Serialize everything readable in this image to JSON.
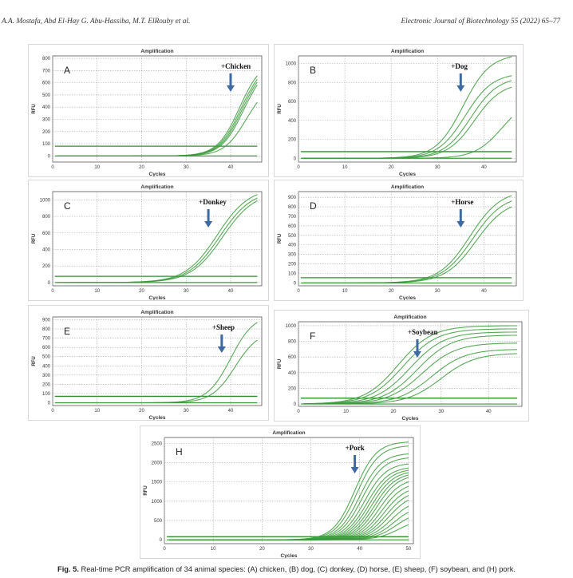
{
  "header": {
    "authors": "A.A. Mostafa, Abd El-Hay G. Abu-Hassiba, M.T. ElRouby et al.",
    "journal": "Electronic Journal of Biotechnology 55 (2022) 65–77"
  },
  "caption": {
    "label": "Fig. 5.",
    "text": "Real-time PCR amplification of 34 animal species: (A) chicken, (B) dog, (C) donkey, (D) horse, (E) sheep, (F) soybean, and (H) pork."
  },
  "colors": {
    "curve": "#3a9a3a",
    "threshold": "#2f8f2f",
    "arrow": "#3d6aa3"
  },
  "chart_data": [
    {
      "id": "A",
      "type": "line",
      "title": "Amplification",
      "xlabel": "Cycles",
      "ylabel": "RFU",
      "panel_letter": "A",
      "annotation": "+Chicken",
      "arrow_cycle": 40,
      "xlim": [
        0,
        47
      ],
      "ylim": [
        -50,
        820
      ],
      "xticks": [
        0,
        10,
        20,
        30,
        40
      ],
      "yticks": [
        0,
        100,
        200,
        300,
        400,
        500,
        600,
        700,
        800
      ],
      "threshold": 80,
      "series": [
        {
          "plateau": 790,
          "midpoint": 42.0,
          "slope": 0.4
        },
        {
          "plateau": 770,
          "midpoint": 42.3,
          "slope": 0.4
        },
        {
          "plateau": 760,
          "midpoint": 42.6,
          "slope": 0.4
        },
        {
          "plateau": 750,
          "midpoint": 42.9,
          "slope": 0.4
        },
        {
          "plateau": 600,
          "midpoint": 43.5,
          "slope": 0.4
        }
      ]
    },
    {
      "id": "B",
      "type": "line",
      "title": "Amplification",
      "xlabel": "Cycles",
      "ylabel": "RFU",
      "panel_letter": "B",
      "annotation": "+Dog",
      "arrow_cycle": 35,
      "xlim": [
        0,
        47
      ],
      "ylim": [
        -40,
        1080
      ],
      "xticks": [
        0,
        10,
        20,
        30,
        40
      ],
      "yticks": [
        0,
        200,
        400,
        600,
        800,
        1000
      ],
      "threshold": 70,
      "series": [
        {
          "plateau": 1100,
          "midpoint": 35.5,
          "slope": 0.34
        },
        {
          "plateau": 900,
          "midpoint": 36.0,
          "slope": 0.34
        },
        {
          "plateau": 860,
          "midpoint": 37.2,
          "slope": 0.34
        },
        {
          "plateau": 800,
          "midpoint": 38.0,
          "slope": 0.34
        },
        {
          "plateau": 650,
          "midpoint": 44.0,
          "slope": 0.34
        }
      ]
    },
    {
      "id": "C",
      "type": "line",
      "title": "Amplification",
      "xlabel": "Cycles",
      "ylabel": "RFU",
      "panel_letter": "C",
      "annotation": "+Donkey",
      "arrow_cycle": 35,
      "xlim": [
        0,
        47
      ],
      "ylim": [
        -40,
        1100
      ],
      "xticks": [
        0,
        10,
        20,
        30,
        40
      ],
      "yticks": [
        0,
        200,
        400,
        600,
        800,
        1000
      ],
      "threshold": 75,
      "series": [
        {
          "plateau": 1150,
          "midpoint": 37.0,
          "slope": 0.28
        },
        {
          "plateau": 1120,
          "midpoint": 37.6,
          "slope": 0.28
        },
        {
          "plateau": 1100,
          "midpoint": 38.2,
          "slope": 0.28
        }
      ]
    },
    {
      "id": "D",
      "type": "line",
      "title": "Amplification",
      "xlabel": "Cycles",
      "ylabel": "RFU",
      "panel_letter": "D",
      "annotation": "+Horse",
      "arrow_cycle": 35,
      "xlim": [
        0,
        47
      ],
      "ylim": [
        -30,
        960
      ],
      "xticks": [
        0,
        10,
        20,
        30,
        40
      ],
      "yticks": [
        0,
        100,
        200,
        300,
        400,
        500,
        600,
        700,
        800,
        900
      ],
      "threshold": 55,
      "series": [
        {
          "plateau": 980,
          "midpoint": 37.0,
          "slope": 0.3
        },
        {
          "plateau": 930,
          "midpoint": 37.6,
          "slope": 0.3
        },
        {
          "plateau": 880,
          "midpoint": 38.3,
          "slope": 0.3
        }
      ]
    },
    {
      "id": "E",
      "type": "line",
      "title": "Amplification",
      "xlabel": "Cycles",
      "ylabel": "RFU",
      "panel_letter": "E",
      "annotation": "+Sheep",
      "arrow_cycle": 38,
      "xlim": [
        0,
        47
      ],
      "ylim": [
        -30,
        930
      ],
      "xticks": [
        0,
        10,
        20,
        30,
        40
      ],
      "yticks": [
        0,
        100,
        200,
        300,
        400,
        500,
        600,
        700,
        800,
        900
      ],
      "threshold": 70,
      "series": [
        {
          "plateau": 960,
          "midpoint": 40.0,
          "slope": 0.38
        },
        {
          "plateau": 780,
          "midpoint": 41.0,
          "slope": 0.38
        }
      ]
    },
    {
      "id": "F",
      "type": "line",
      "title": "Amplification",
      "xlabel": "Cycles",
      "ylabel": "RFU",
      "panel_letter": "F",
      "annotation": "+Soybean",
      "arrow_cycle": 25,
      "xlim": [
        0,
        47
      ],
      "ylim": [
        -30,
        1050
      ],
      "xticks": [
        0,
        10,
        20,
        30,
        40
      ],
      "yticks": [
        0,
        200,
        400,
        600,
        800,
        1000
      ],
      "threshold": 75,
      "series": [
        {
          "plateau": 1000,
          "midpoint": 21.0,
          "slope": 0.28
        },
        {
          "plateau": 960,
          "midpoint": 22.0,
          "slope": 0.28
        },
        {
          "plateau": 920,
          "midpoint": 23.5,
          "slope": 0.28
        },
        {
          "plateau": 880,
          "midpoint": 25.0,
          "slope": 0.28
        },
        {
          "plateau": 780,
          "midpoint": 26.0,
          "slope": 0.28
        },
        {
          "plateau": 700,
          "midpoint": 28.0,
          "slope": 0.28
        },
        {
          "plateau": 650,
          "midpoint": 30.0,
          "slope": 0.28
        }
      ]
    },
    {
      "id": "H",
      "type": "line",
      "title": "Amplification",
      "xlabel": "Cycles",
      "ylabel": "RFU",
      "panel_letter": "H",
      "annotation": "+Pork",
      "arrow_cycle": 39,
      "xlim": [
        0,
        51
      ],
      "ylim": [
        -100,
        2650
      ],
      "xticks": [
        0,
        10,
        20,
        30,
        40,
        50
      ],
      "yticks": [
        0,
        500,
        1000,
        1500,
        2000,
        2500
      ],
      "threshold": 80,
      "series": [
        {
          "plateau": 2550,
          "midpoint": 39.0,
          "slope": 0.45
        },
        {
          "plateau": 2450,
          "midpoint": 39.5,
          "slope": 0.45
        },
        {
          "plateau": 2250,
          "midpoint": 40.0,
          "slope": 0.45
        },
        {
          "plateau": 2150,
          "midpoint": 40.5,
          "slope": 0.45
        },
        {
          "plateau": 2000,
          "midpoint": 41.0,
          "slope": 0.45
        },
        {
          "plateau": 1900,
          "midpoint": 41.5,
          "slope": 0.45
        },
        {
          "plateau": 1850,
          "midpoint": 42.0,
          "slope": 0.45
        },
        {
          "plateau": 1800,
          "midpoint": 42.5,
          "slope": 0.45
        },
        {
          "plateau": 1750,
          "midpoint": 43.0,
          "slope": 0.45
        },
        {
          "plateau": 1700,
          "midpoint": 43.5,
          "slope": 0.45
        },
        {
          "plateau": 1600,
          "midpoint": 44.0,
          "slope": 0.45
        },
        {
          "plateau": 1500,
          "midpoint": 44.5,
          "slope": 0.45
        },
        {
          "plateau": 1400,
          "midpoint": 45.0,
          "slope": 0.45
        },
        {
          "plateau": 1300,
          "midpoint": 45.5,
          "slope": 0.45
        },
        {
          "plateau": 1200,
          "midpoint": 46.0,
          "slope": 0.45
        },
        {
          "plateau": 1050,
          "midpoint": 46.5,
          "slope": 0.45
        },
        {
          "plateau": 900,
          "midpoint": 47.0,
          "slope": 0.45
        },
        {
          "plateau": 750,
          "midpoint": 47.5,
          "slope": 0.45
        },
        {
          "plateau": 550,
          "midpoint": 48.0,
          "slope": 0.45
        }
      ]
    }
  ]
}
